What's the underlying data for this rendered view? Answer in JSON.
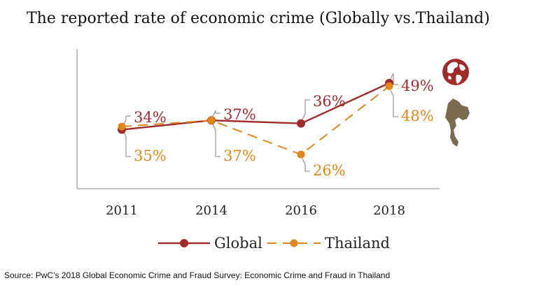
{
  "title": "The reported rate of economic crime (Globally vs.Thailand)",
  "source": "Source: PwC’s 2018 Global Economic Crime and Fraud Survey: Economic Crime and Fraud in Thailand",
  "colors": {
    "global": "#a02b2b",
    "thailand": "#e0861a",
    "axis": "#9a9a9a",
    "callout": "#9a9a9a",
    "globe_icon": "#a02b2b",
    "map_icon": "#7a6a4f"
  },
  "icons": {
    "global": "globe-icon",
    "thailand": "thailand-map-icon"
  },
  "chart_data": {
    "type": "line",
    "categories": [
      "2011",
      "2014",
      "2016",
      "2018"
    ],
    "series": [
      {
        "name": "Global",
        "values": [
          34,
          37,
          36,
          49
        ],
        "labels": [
          "34%",
          "37%",
          "36%",
          "49%"
        ],
        "style": "solid",
        "marker": "circle"
      },
      {
        "name": "Thailand",
        "values": [
          35,
          37,
          26,
          48
        ],
        "labels": [
          "35%",
          "37%",
          "26%",
          "48%"
        ],
        "style": "dashed",
        "marker": "circle"
      }
    ],
    "ylim": [
      15,
      60
    ],
    "legend_position": "bottom",
    "grid": false
  }
}
